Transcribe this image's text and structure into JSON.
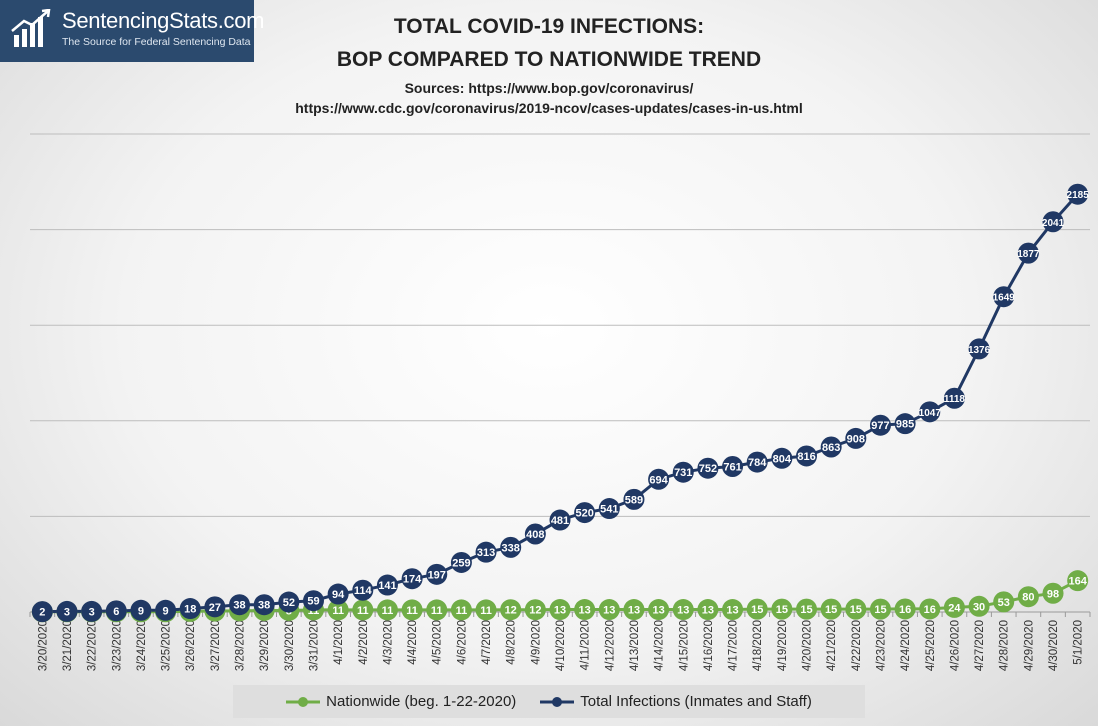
{
  "logo": {
    "name": "SentencingStats.com",
    "tagline": "The Source for Federal Sentencing Data"
  },
  "chart_data": {
    "type": "line",
    "title": "TOTAL COVID-19 INFECTIONS:",
    "subtitle": "BOP COMPARED TO NATIONWIDE TREND",
    "sources_line1": "Sources: https://www.bop.gov/coronavirus/",
    "sources_line2": "https://www.cdc.gov/coronavirus/2019-ncov/cases-updates/cases-in-us.html",
    "xlabel": "",
    "ylabel": "",
    "grid": true,
    "legend_position": "bottom",
    "categories": [
      "3/20/2020",
      "3/21/2020",
      "3/22/2020",
      "3/23/2020",
      "3/24/2020",
      "3/25/2020",
      "3/26/2020",
      "3/27/2020",
      "3/28/2020",
      "3/29/2020",
      "3/30/2020",
      "3/31/2020",
      "4/1/2020",
      "4/2/2020",
      "4/3/2020",
      "4/4/2020",
      "4/5/2020",
      "4/6/2020",
      "4/7/2020",
      "4/8/2020",
      "4/9/2020",
      "4/10/2020",
      "4/11/2020",
      "4/12/2020",
      "4/13/2020",
      "4/14/2020",
      "4/15/2020",
      "4/16/2020",
      "4/17/2020",
      "4/18/2020",
      "4/19/2020",
      "4/20/2020",
      "4/21/2020",
      "4/22/2020",
      "4/23/2020",
      "4/24/2020",
      "4/25/2020",
      "4/26/2020",
      "4/27/2020",
      "4/28/2020",
      "4/29/2020",
      "4/30/2020",
      "5/1/2020"
    ],
    "series": [
      {
        "name": "Nationwide (beg. 1-22-2020)",
        "color": "#70ad47",
        "values": [
          1,
          1,
          1,
          1,
          1,
          1,
          3,
          5,
          6,
          8,
          8,
          11,
          11,
          11,
          11,
          11,
          11,
          11,
          11,
          12,
          12,
          13,
          13,
          13,
          13,
          13,
          13,
          13,
          13,
          15,
          15,
          15,
          15,
          15,
          15,
          16,
          16,
          24,
          30,
          53,
          80,
          98,
          164
        ]
      },
      {
        "name": "Total Infections (Inmates and Staff)",
        "color": "#203864",
        "values": [
          2,
          3,
          3,
          6,
          9,
          9,
          18,
          27,
          38,
          38,
          52,
          59,
          94,
          114,
          141,
          174,
          197,
          259,
          313,
          338,
          408,
          481,
          520,
          541,
          589,
          694,
          731,
          752,
          761,
          784,
          804,
          816,
          863,
          908,
          977,
          985,
          1047,
          1118,
          1376,
          1649,
          1877,
          2041,
          2185
        ]
      }
    ],
    "ylim": [
      0,
      2500
    ]
  }
}
